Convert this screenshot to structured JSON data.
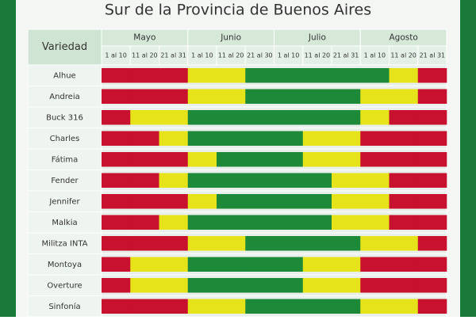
{
  "title": "Sur de la Provincia de Buenos Aires",
  "header": {
    "variety_label": "Variedad",
    "months": [
      "Mayo",
      "Junio",
      "Julio",
      "Agosto"
    ],
    "periods": [
      "1 al 10",
      "11 al 20",
      "21 al 31",
      "1 al 10",
      "11 al 20",
      "21 al 30",
      "1 al 10",
      "11 al 20",
      "21 al 31",
      "1 al 10",
      "11 al 20",
      "21 al 31"
    ]
  },
  "colors": {
    "R": "#c8112e",
    "Y": "#e6e31a",
    "G": "#1d8a3a"
  },
  "rows": [
    {
      "name": "Alhue",
      "cells": [
        "R",
        "R",
        "R",
        "Y",
        "Y",
        "G",
        "G",
        "G",
        "G",
        "G",
        "Y",
        "R"
      ]
    },
    {
      "name": "Andreia",
      "cells": [
        "R",
        "R",
        "R",
        "Y",
        "Y",
        "G",
        "G",
        "G",
        "G",
        "Y",
        "Y",
        "R"
      ]
    },
    {
      "name": "Buck 316",
      "cells": [
        "R",
        "Y",
        "Y",
        "G",
        "G",
        "G",
        "G",
        "G",
        "G",
        "Y",
        "R",
        "R"
      ]
    },
    {
      "name": "Charles",
      "cells": [
        "R",
        "R",
        "Y",
        "G",
        "G",
        "G",
        "G",
        "Y",
        "Y",
        "R",
        "R",
        "R"
      ]
    },
    {
      "name": "Fátima",
      "cells": [
        "R",
        "R",
        "R",
        "Y",
        "G",
        "G",
        "G",
        "Y",
        "Y",
        "R",
        "R",
        "R"
      ]
    },
    {
      "name": "Fender",
      "cells": [
        "R",
        "R",
        "Y",
        "G",
        "G",
        "G",
        "G",
        "G",
        "Y",
        "Y",
        "R",
        "R"
      ]
    },
    {
      "name": "Jennifer",
      "cells": [
        "R",
        "R",
        "R",
        "Y",
        "G",
        "G",
        "G",
        "G",
        "Y",
        "Y",
        "R",
        "R"
      ]
    },
    {
      "name": "Malkia",
      "cells": [
        "R",
        "R",
        "Y",
        "G",
        "G",
        "G",
        "G",
        "G",
        "Y",
        "Y",
        "R",
        "R"
      ]
    },
    {
      "name": "Militza INTA",
      "cells": [
        "R",
        "R",
        "R",
        "Y",
        "Y",
        "G",
        "G",
        "G",
        "G",
        "Y",
        "Y",
        "R"
      ]
    },
    {
      "name": "Montoya",
      "cells": [
        "R",
        "Y",
        "Y",
        "G",
        "G",
        "G",
        "G",
        "Y",
        "Y",
        "R",
        "R",
        "R"
      ]
    },
    {
      "name": "Overture",
      "cells": [
        "R",
        "Y",
        "Y",
        "G",
        "G",
        "G",
        "G",
        "Y",
        "Y",
        "R",
        "R",
        "R"
      ]
    },
    {
      "name": "Sinfonía",
      "cells": [
        "R",
        "R",
        "R",
        "Y",
        "Y",
        "G",
        "G",
        "G",
        "G",
        "Y",
        "Y",
        "R"
      ]
    }
  ]
}
